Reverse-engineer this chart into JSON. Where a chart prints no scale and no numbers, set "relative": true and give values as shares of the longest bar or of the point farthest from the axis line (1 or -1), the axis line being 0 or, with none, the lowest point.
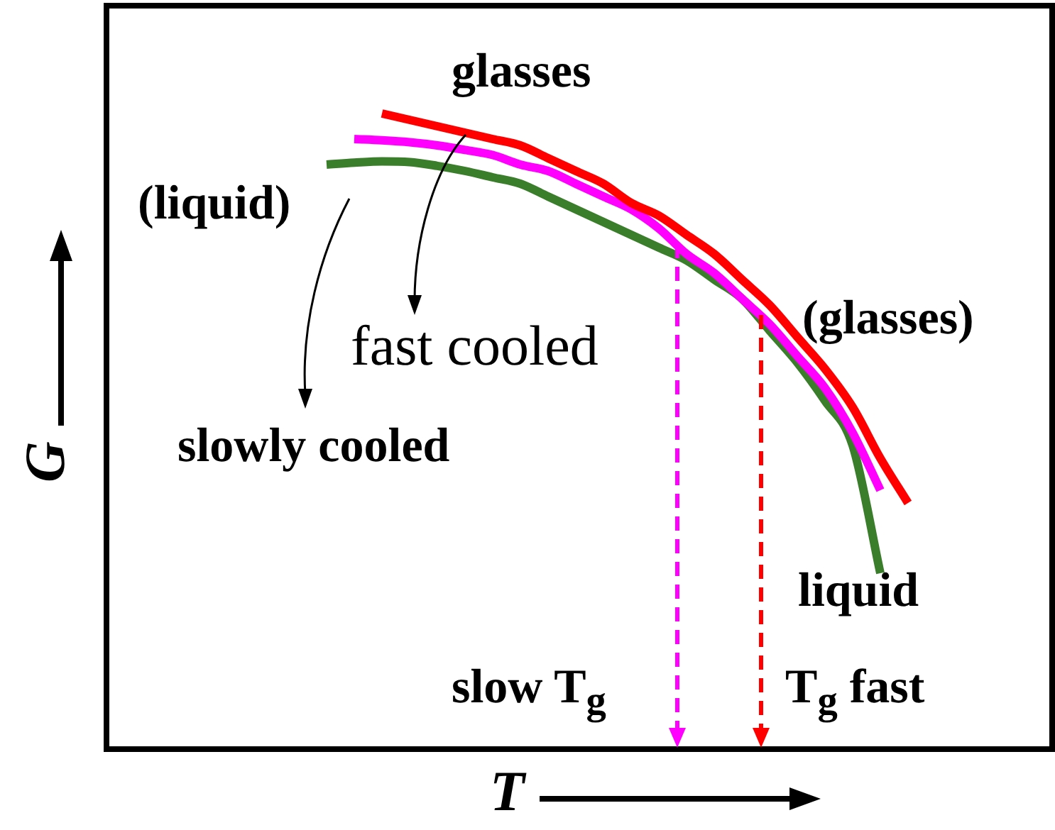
{
  "chart_data": {
    "type": "line",
    "relative": true,
    "xlabel": "T",
    "ylabel": "G",
    "legend": false,
    "marker": "none",
    "line_style": "solid",
    "categories": [
      null,
      null,
      null,
      null,
      null,
      null,
      null,
      null,
      null,
      null,
      null,
      null,
      null,
      null,
      null,
      null,
      null,
      null,
      null,
      null,
      null,
      null
    ],
    "series": [
      {
        "color": "#ff0000",
        "values": [
          null,
          null,
          1,
          0.99,
          0.98,
          0.97,
          0.96,
          0.95,
          0.93,
          0.91,
          0.89,
          0.86,
          0.84,
          0.81,
          0.78,
          0.74,
          0.7,
          0.65,
          0.6,
          0.54,
          0.46,
          0.39
        ]
      },
      {
        "color": "#ff00ff",
        "values": [
          null,
          0.96,
          0.958,
          0.955,
          0.95,
          0.943,
          0.935,
          0.92,
          0.91,
          0.89,
          0.87,
          0.85,
          0.82,
          0.78,
          0.75,
          0.71,
          0.67,
          0.62,
          0.57,
          0.5,
          0.41,
          null
        ]
      },
      {
        "color": "#3a7d2a",
        "values": [
          0.92,
          0.923,
          0.925,
          0.924,
          0.918,
          0.91,
          0.9,
          0.89,
          0.87,
          0.85,
          0.83,
          0.81,
          0.79,
          0.77,
          0.74,
          0.71,
          0.66,
          0.61,
          0.55,
          0.48,
          0.28,
          null
        ]
      }
    ],
    "annotations": [
      "glasses",
      "(liquid)",
      "fast cooled",
      "slowly cooled",
      "(glasses)",
      "liquid",
      "slow T$_{g}$",
      "T$_{g}$ fast"
    ]
  }
}
